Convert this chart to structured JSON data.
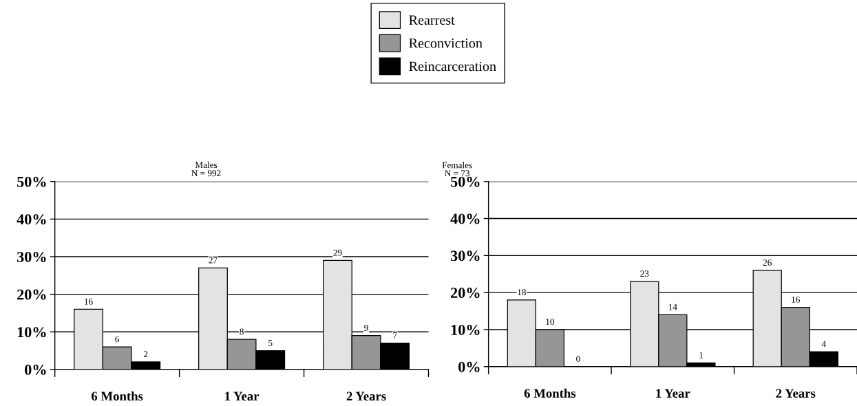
{
  "chart_data": [
    {
      "type": "bar",
      "title": "Males",
      "subtitle": "N = 992",
      "categories": [
        "6 Months",
        "1 Year",
        "2 Years"
      ],
      "series": [
        {
          "name": "Rearrest",
          "color": "#e3e3e3",
          "values": [
            16,
            27,
            29
          ]
        },
        {
          "name": "Reconviction",
          "color": "#969696",
          "values": [
            6,
            8,
            9
          ]
        },
        {
          "name": "Reincarceration",
          "color": "#000000",
          "values": [
            2,
            5,
            7
          ]
        }
      ],
      "ylim": [
        0,
        50
      ],
      "yticks": [
        {
          "value": 0,
          "label": "0%"
        },
        {
          "value": 10,
          "label": "10%"
        },
        {
          "value": 20,
          "label": "20%"
        },
        {
          "value": 30,
          "label": "30%"
        },
        {
          "value": 40,
          "label": "40%"
        },
        {
          "value": 50,
          "label": "50%"
        }
      ],
      "grid": "y",
      "legend": "top",
      "data_labels": true
    },
    {
      "type": "bar",
      "title": "Females",
      "subtitle": "N = 73",
      "categories": [
        "6 Months",
        "1 Year",
        "2 Years"
      ],
      "series": [
        {
          "color": "#e3e3e3",
          "values": [
            18,
            23,
            26
          ]
        },
        {
          "color": "#969696",
          "values": [
            10,
            14,
            16
          ]
        },
        {
          "color": "#000000",
          "values": [
            0,
            1,
            4
          ]
        }
      ],
      "ylim": [
        0,
        50
      ],
      "yticks": [
        {
          "value": 0,
          "label": "0%"
        },
        {
          "value": 10,
          "label": "10%"
        },
        {
          "value": 20,
          "label": "20%"
        },
        {
          "value": 30,
          "label": "30%"
        },
        {
          "value": 40,
          "label": "40%"
        },
        {
          "value": 50,
          "label": "50%"
        }
      ],
      "grid": "y",
      "data_labels": true
    }
  ]
}
